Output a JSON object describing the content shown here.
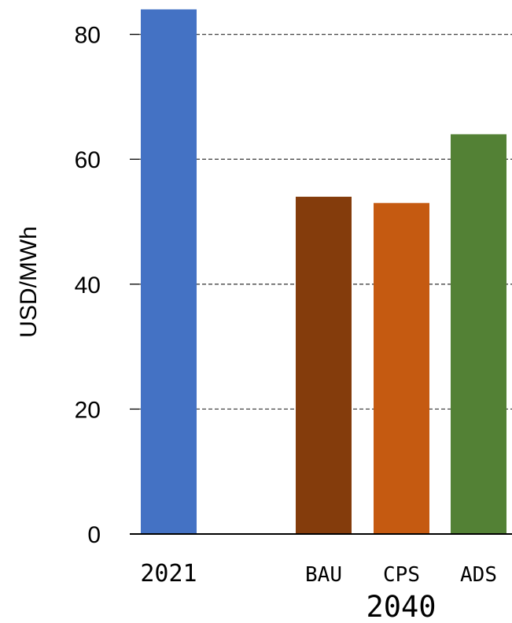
{
  "chart_data": {
    "type": "bar",
    "title": "",
    "xlabel": "",
    "ylabel": "USD/MWh",
    "ylim": [
      0,
      84
    ],
    "yticks": [
      0,
      20,
      40,
      60,
      80
    ],
    "grid": true,
    "categories": [
      "2021",
      "BAU",
      "CPS",
      "ADS"
    ],
    "values": [
      84,
      54,
      53,
      64
    ],
    "colors": [
      "#4472C4",
      "#843C0C",
      "#C55A11",
      "#538135"
    ],
    "group_label": "2040",
    "group_members": [
      "BAU",
      "CPS",
      "ADS"
    ]
  }
}
